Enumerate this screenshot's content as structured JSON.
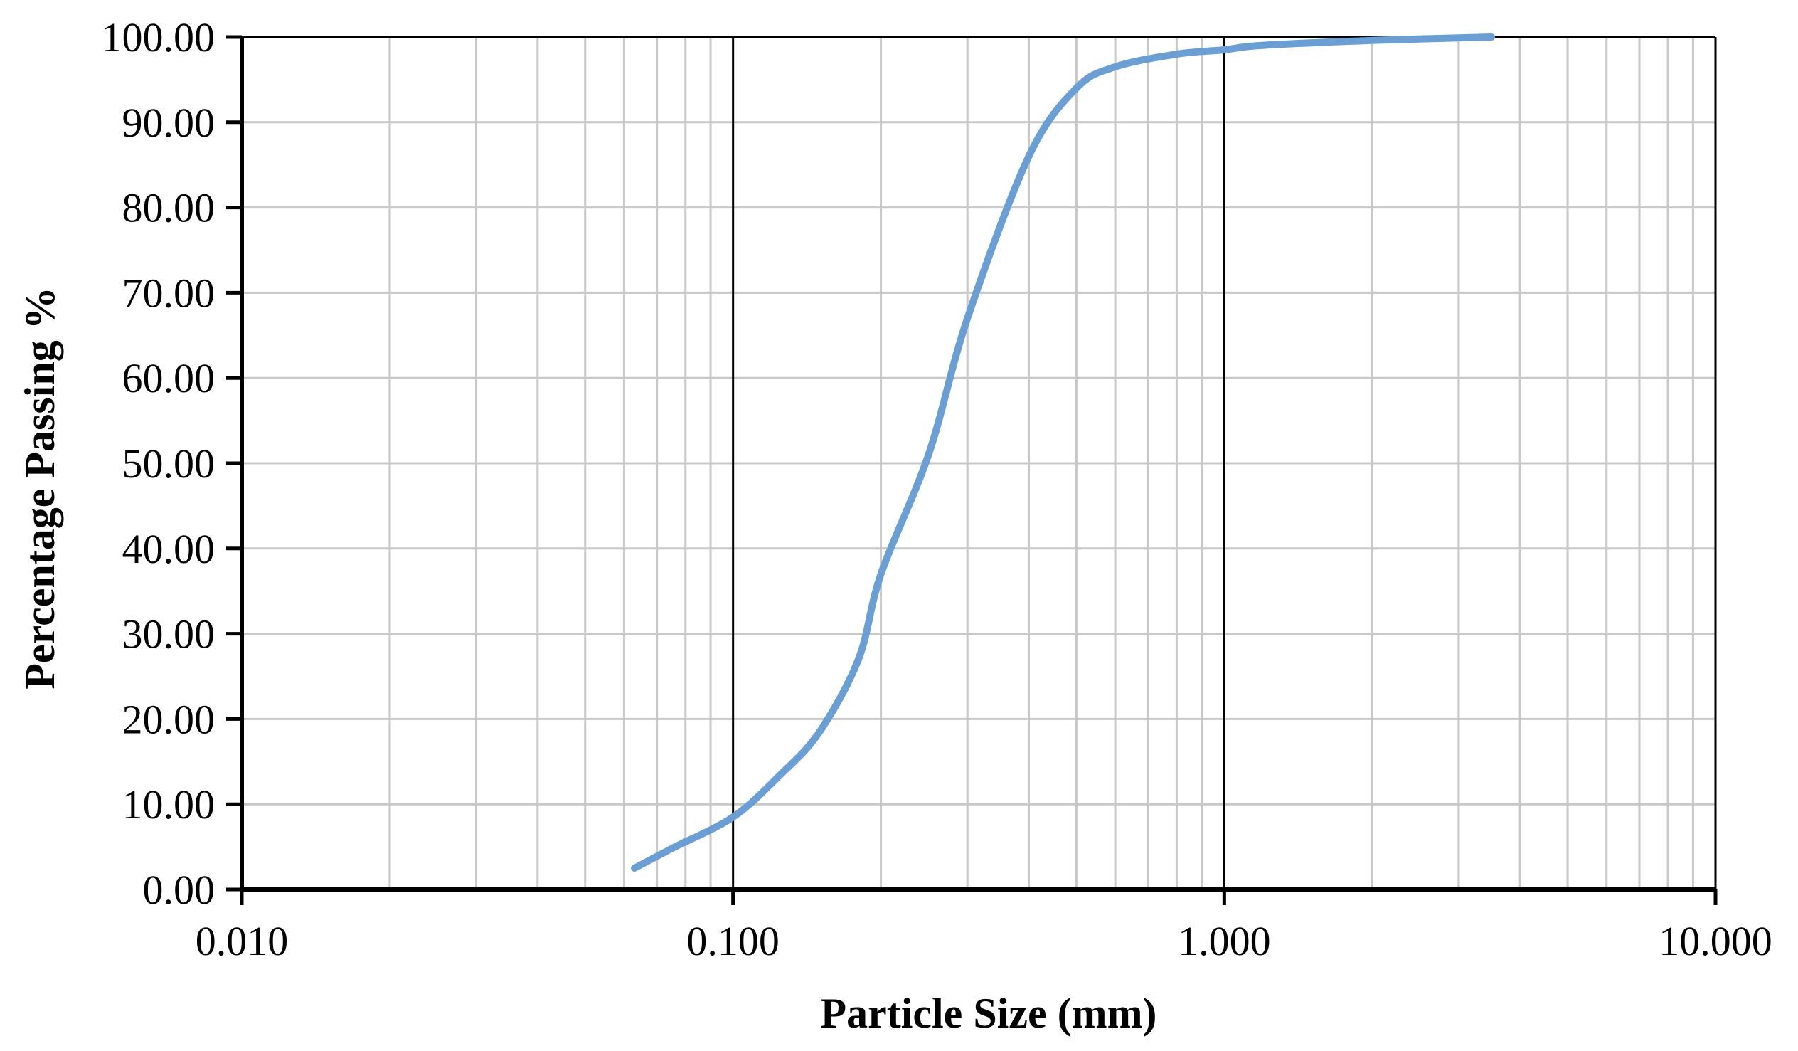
{
  "chart_data": {
    "type": "line",
    "title": "",
    "xlabel": "Particle Size (mm)",
    "ylabel": "Percentage Passing %",
    "x_scale": "log",
    "xlim": [
      0.01,
      10
    ],
    "ylim": [
      0,
      100
    ],
    "x_ticks": [
      "0.010",
      "0.100",
      "1.000",
      "10.000"
    ],
    "y_ticks": [
      "0.00",
      "10.00",
      "20.00",
      "30.00",
      "40.00",
      "50.00",
      "60.00",
      "70.00",
      "80.00",
      "90.00",
      "100.00"
    ],
    "grid": true,
    "legend": "none",
    "series": [
      {
        "color": "#6a9fd6",
        "x": [
          0.063,
          0.075,
          0.1,
          0.125,
          0.15,
          0.18,
          0.2,
          0.25,
          0.3,
          0.4,
          0.5,
          0.6,
          0.8,
          1.0,
          1.18,
          2.0,
          3.5
        ],
        "y": [
          2.5,
          4.8,
          8.5,
          13.5,
          18.5,
          27.0,
          37.0,
          51.0,
          67.0,
          86.0,
          94.0,
          96.5,
          98.0,
          98.5,
          99.0,
          99.6,
          100.0
        ]
      }
    ]
  }
}
